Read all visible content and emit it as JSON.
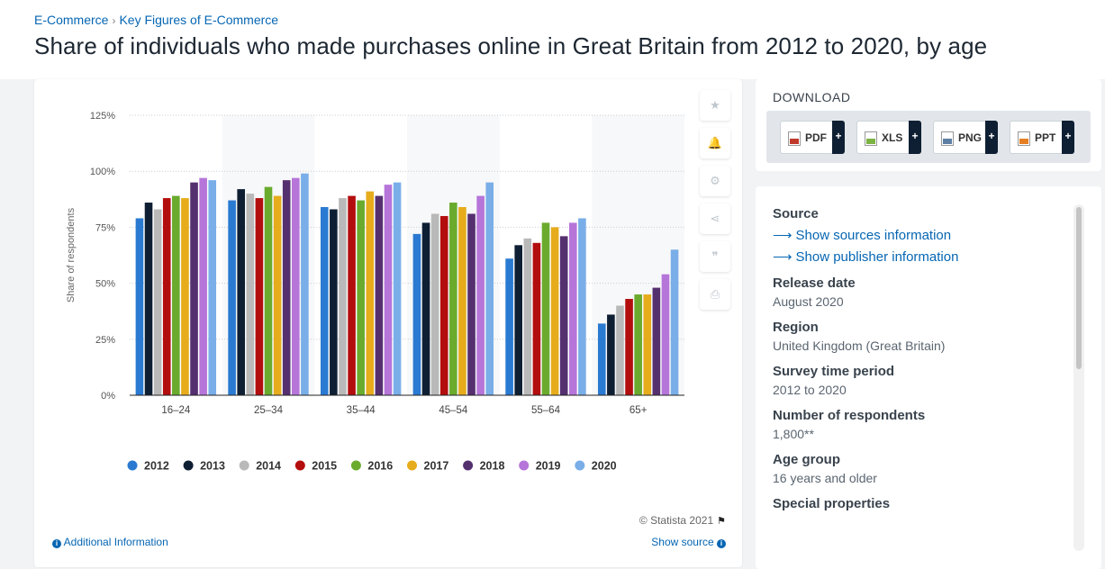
{
  "breadcrumb": [
    "E-Commerce",
    "Key Figures of E-Commerce"
  ],
  "page_title": "Share of individuals who made purchases online in Great Britain from 2012 to 2020, by age",
  "tools": [
    {
      "name": "favorite-icon",
      "glyph": "★"
    },
    {
      "name": "notification-bell-icon",
      "glyph": "🔔"
    },
    {
      "name": "settings-gear-icon",
      "glyph": "⚙"
    },
    {
      "name": "share-icon",
      "glyph": "⋖"
    },
    {
      "name": "quote-icon",
      "glyph": "❞"
    },
    {
      "name": "print-icon",
      "glyph": "⎙"
    }
  ],
  "chart_footer": {
    "copyright": "© Statista 2021",
    "additional_info": "Additional Information",
    "show_source": "Show source"
  },
  "download": {
    "title": "DOWNLOAD",
    "buttons": [
      {
        "label": "PDF",
        "icon": "pdf-file-icon",
        "color": "#c0392b"
      },
      {
        "label": "XLS",
        "icon": "xls-file-icon",
        "color": "#7cb342"
      },
      {
        "label": "PNG",
        "icon": "png-file-icon",
        "color": "#5c7fa3"
      },
      {
        "label": "PPT",
        "icon": "ppt-file-icon",
        "color": "#e67e22"
      }
    ]
  },
  "info": {
    "source_heading": "Source",
    "source_links": [
      "Show sources information",
      "Show publisher information"
    ],
    "release_date_heading": "Release date",
    "release_date": "August 2020",
    "region_heading": "Region",
    "region": "United Kingdom (Great Britain)",
    "survey_period_heading": "Survey time period",
    "survey_period": "2012 to 2020",
    "respondents_heading": "Number of respondents",
    "respondents": "1,800**",
    "age_group_heading": "Age group",
    "age_group": "16 years and older",
    "special_heading": "Special properties"
  },
  "chart_data": {
    "type": "bar",
    "title": "",
    "xlabel": "",
    "ylabel": "Share of respondents",
    "ylim": [
      0,
      125
    ],
    "yticks": [
      0,
      25,
      50,
      75,
      100,
      125
    ],
    "ytick_labels": [
      "0%",
      "25%",
      "50%",
      "75%",
      "100%",
      "125%"
    ],
    "grid": true,
    "legend_position": "bottom",
    "categories": [
      "16-24",
      "25-34",
      "35-44",
      "45-54",
      "55-64",
      "65+"
    ],
    "series": [
      {
        "name": "2012",
        "color": "#2a7ad2",
        "values": [
          79,
          87,
          84,
          72,
          61,
          32
        ]
      },
      {
        "name": "2013",
        "color": "#0f1f33",
        "values": [
          86,
          92,
          83,
          77,
          67,
          36
        ]
      },
      {
        "name": "2014",
        "color": "#b9b9b9",
        "values": [
          83,
          90,
          88,
          81,
          70,
          40
        ]
      },
      {
        "name": "2015",
        "color": "#b30e0e",
        "values": [
          88,
          88,
          89,
          80,
          68,
          43
        ]
      },
      {
        "name": "2016",
        "color": "#6aab2e",
        "values": [
          89,
          93,
          87,
          86,
          77,
          45
        ]
      },
      {
        "name": "2017",
        "color": "#e6ac1c",
        "values": [
          88,
          89,
          91,
          84,
          75,
          45
        ]
      },
      {
        "name": "2018",
        "color": "#55306f",
        "values": [
          95,
          96,
          89,
          81,
          71,
          48
        ]
      },
      {
        "name": "2019",
        "color": "#b675d9",
        "values": [
          97,
          97,
          94,
          89,
          77,
          54
        ]
      },
      {
        "name": "2020",
        "color": "#7aaee8",
        "values": [
          96,
          99,
          95,
          95,
          79,
          65
        ]
      }
    ]
  }
}
